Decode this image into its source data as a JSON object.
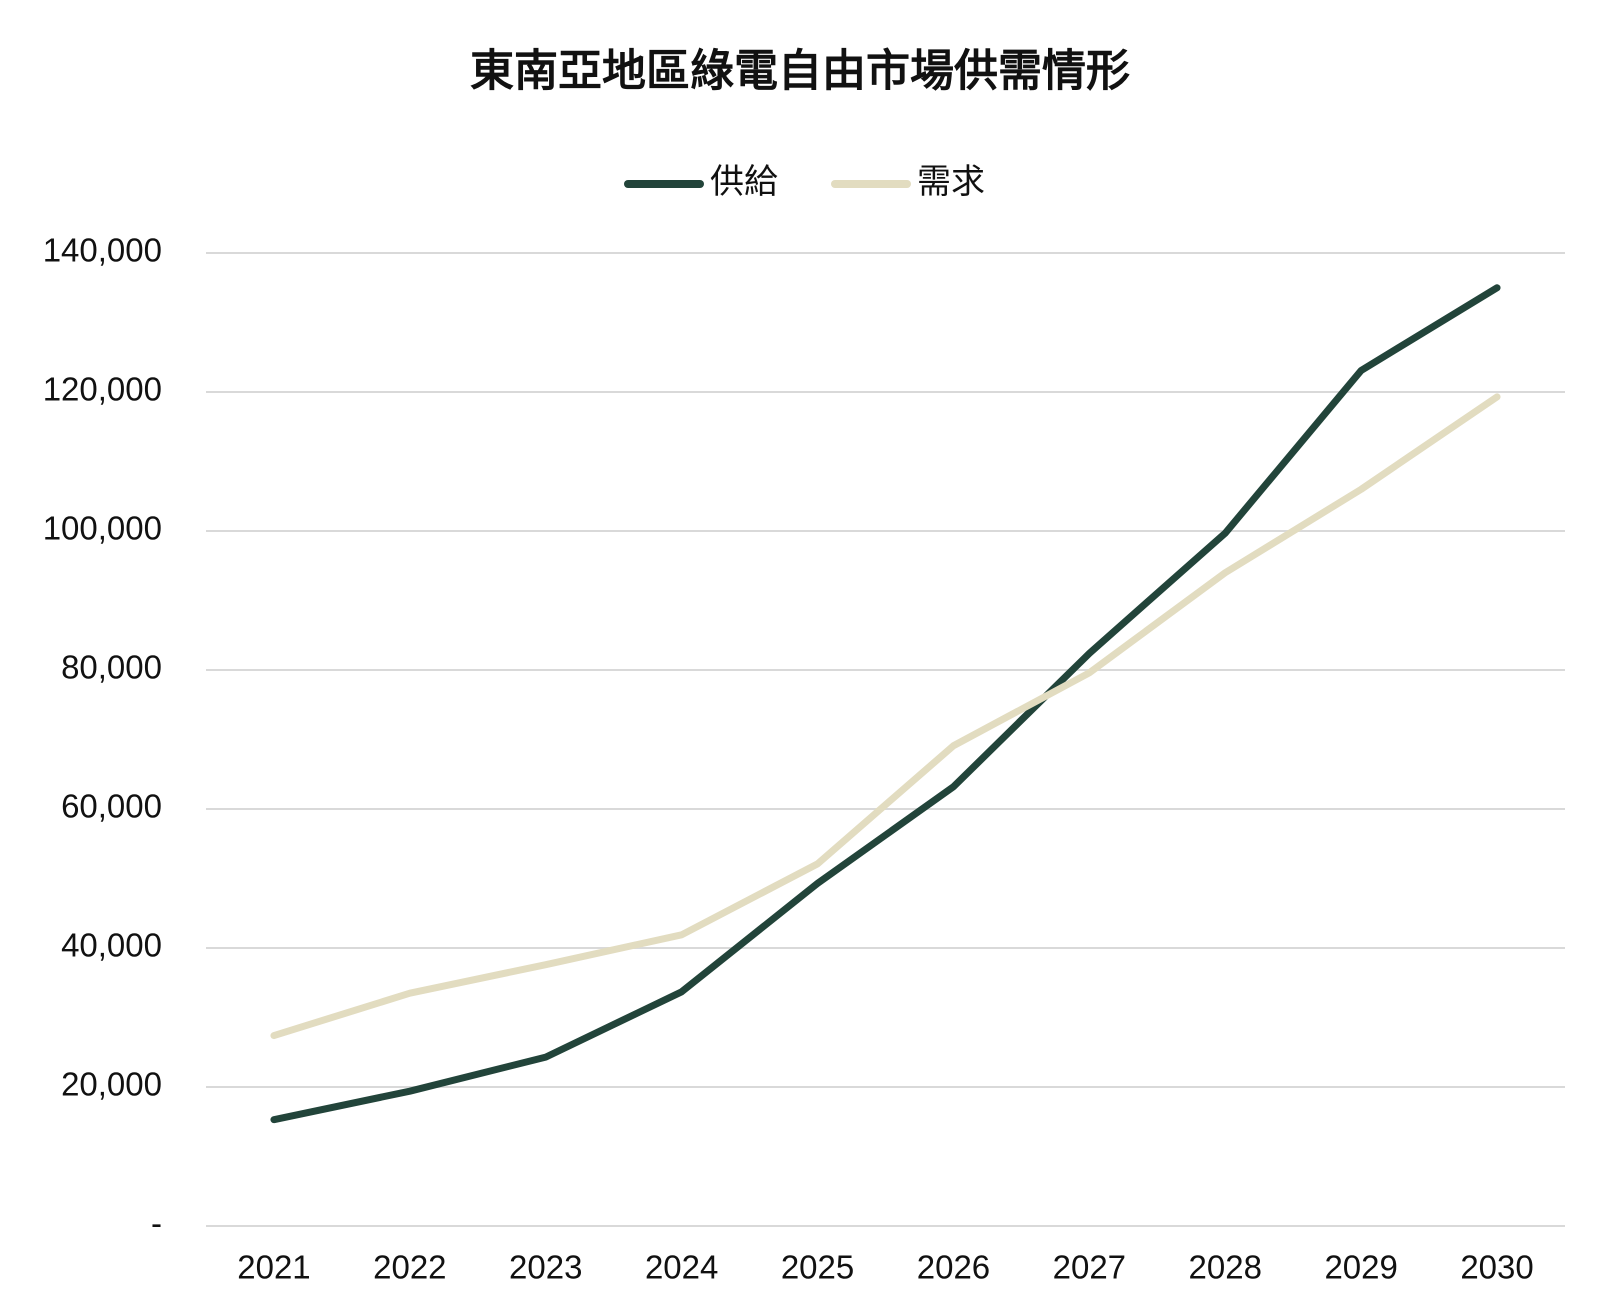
{
  "chart_data": {
    "type": "line",
    "title": "東南亞地區綠電自由市場供需情形",
    "categories": [
      "2021",
      "2022",
      "2023",
      "2024",
      "2025",
      "2026",
      "2027",
      "2028",
      "2029",
      "2030"
    ],
    "series": [
      {
        "name": "供給",
        "color": "#22443a",
        "values": [
          15300,
          19400,
          24300,
          33700,
          49300,
          63200,
          82400,
          99700,
          123100,
          135000
        ]
      },
      {
        "name": "需求",
        "color": "#e2dcc0",
        "values": [
          27400,
          33500,
          37600,
          41900,
          52100,
          69100,
          79600,
          94000,
          106000,
          119300
        ]
      }
    ],
    "ylim": [
      0,
      140000
    ],
    "yticks": [
      {
        "value": 0,
        "label": "-"
      },
      {
        "value": 20000,
        "label": "20,000"
      },
      {
        "value": 40000,
        "label": "40,000"
      },
      {
        "value": 60000,
        "label": "60,000"
      },
      {
        "value": 80000,
        "label": "80,000"
      },
      {
        "value": 100000,
        "label": "100,000"
      },
      {
        "value": 120000,
        "label": "120,000"
      },
      {
        "value": 140000,
        "label": "140,000"
      }
    ],
    "grid": true,
    "legend": "top"
  }
}
